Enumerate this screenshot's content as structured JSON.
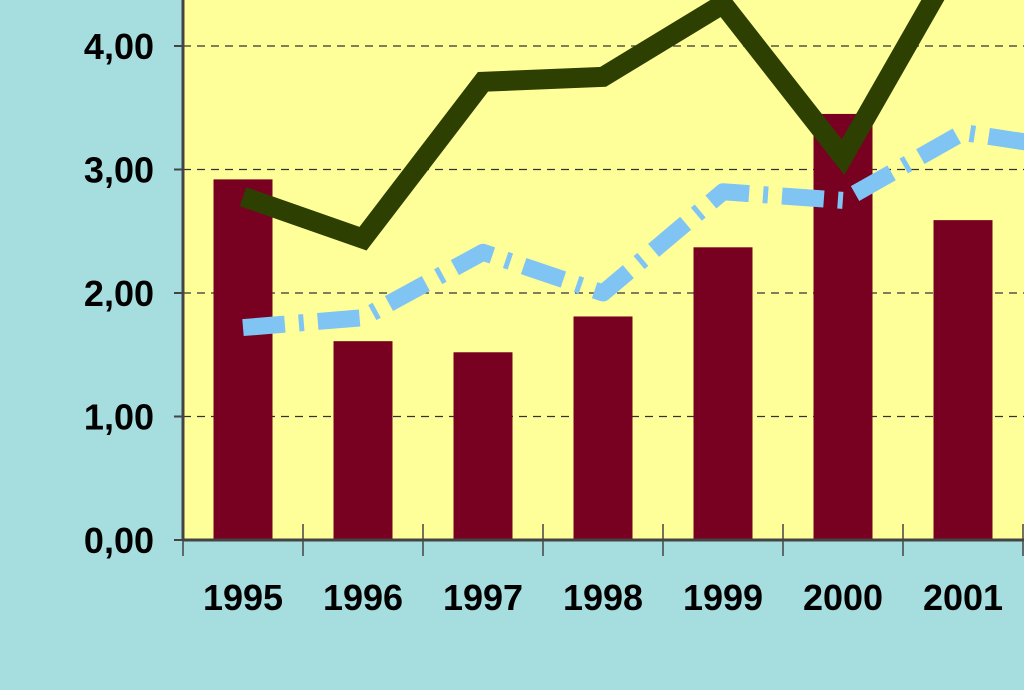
{
  "chart_data": {
    "type": "bar",
    "categories": [
      "1995",
      "1996",
      "1997",
      "1998",
      "1999",
      "2000",
      "2001"
    ],
    "ylim": [
      0,
      4.35
    ],
    "y_ticks": [
      "0,00",
      "1,00",
      "2,00",
      "3,00",
      "4,00"
    ],
    "y_tick_values": [
      0,
      1,
      2,
      3,
      4
    ],
    "grid": "horizontal dashed",
    "legend": "none",
    "series": [
      {
        "type": "bar",
        "color": "#780020",
        "values": [
          2.92,
          1.61,
          1.52,
          1.81,
          2.37,
          3.45,
          2.59
        ]
      },
      {
        "type": "line",
        "style": "solid",
        "color": "#2e3f02",
        "values": [
          2.78,
          2.44,
          3.71,
          3.75,
          4.34,
          3.1,
          4.8
        ]
      },
      {
        "type": "line",
        "style": "dash-dot",
        "color": "#80c4f4",
        "values": [
          1.72,
          1.8,
          2.33,
          2.0,
          2.82,
          2.75,
          3.3
        ],
        "trailing_value": 3.2
      }
    ],
    "colors": {
      "background": "#a6dedf",
      "plot_area": "#ffff99",
      "axis": "#444444",
      "grid": "#333333"
    }
  }
}
